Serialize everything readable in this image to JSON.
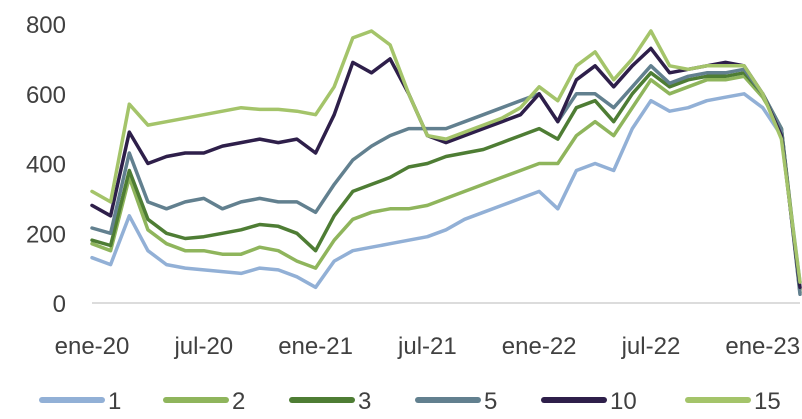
{
  "chart_data": {
    "type": "line",
    "title": "",
    "xlabel": "",
    "ylabel": "",
    "ylim": [
      0,
      800
    ],
    "yticks": [
      0,
      200,
      400,
      600,
      800
    ],
    "xticks": [
      "ene-20",
      "jul-20",
      "ene-21",
      "jul-21",
      "ene-22",
      "jul-22",
      "ene-23"
    ],
    "grid": false,
    "legend": "bottom",
    "x": [
      "ene-20",
      "feb-20",
      "mar-20",
      "abr-20",
      "may-20",
      "jun-20",
      "jul-20",
      "ago-20",
      "sep-20",
      "oct-20",
      "nov-20",
      "dic-20",
      "ene-21",
      "feb-21",
      "mar-21",
      "abr-21",
      "may-21",
      "jun-21",
      "jul-21",
      "ago-21",
      "sep-21",
      "oct-21",
      "nov-21",
      "dic-21",
      "ene-22",
      "feb-22",
      "mar-22",
      "abr-22",
      "may-22",
      "jun-22",
      "jul-22",
      "ago-22",
      "sep-22",
      "oct-22",
      "nov-22",
      "dic-22",
      "ene-23",
      "feb-23",
      "mar-23"
    ],
    "series": [
      {
        "name": "1",
        "color": "#92b0d6",
        "values": [
          130,
          110,
          250,
          150,
          110,
          100,
          95,
          90,
          85,
          100,
          95,
          75,
          45,
          120,
          150,
          160,
          170,
          180,
          190,
          210,
          240,
          260,
          280,
          300,
          320,
          270,
          380,
          400,
          380,
          500,
          580,
          550,
          560,
          580,
          590,
          600,
          560,
          480,
          60
        ]
      },
      {
        "name": "2",
        "color": "#8fb55c",
        "values": [
          170,
          150,
          360,
          210,
          170,
          150,
          150,
          140,
          140,
          160,
          150,
          120,
          100,
          180,
          240,
          260,
          270,
          270,
          280,
          300,
          320,
          340,
          360,
          380,
          400,
          400,
          480,
          520,
          480,
          560,
          640,
          600,
          620,
          640,
          640,
          650,
          590,
          500,
          40
        ]
      },
      {
        "name": "3",
        "color": "#4e7d34",
        "values": [
          180,
          165,
          380,
          240,
          200,
          185,
          190,
          200,
          210,
          225,
          220,
          200,
          150,
          250,
          320,
          340,
          360,
          390,
          400,
          420,
          430,
          440,
          460,
          480,
          500,
          470,
          560,
          580,
          520,
          600,
          660,
          620,
          640,
          650,
          650,
          660,
          600,
          500,
          30
        ]
      },
      {
        "name": "5",
        "color": "#62808f",
        "values": [
          215,
          200,
          430,
          290,
          270,
          290,
          300,
          270,
          290,
          300,
          290,
          290,
          260,
          340,
          410,
          450,
          480,
          500,
          500,
          500,
          520,
          540,
          560,
          580,
          600,
          520,
          600,
          600,
          560,
          620,
          680,
          630,
          650,
          660,
          660,
          670,
          600,
          500,
          25
        ]
      },
      {
        "name": "10",
        "color": "#2e1f4a",
        "values": [
          280,
          250,
          490,
          400,
          420,
          430,
          430,
          450,
          460,
          470,
          460,
          470,
          430,
          540,
          690,
          660,
          700,
          600,
          480,
          460,
          480,
          500,
          520,
          540,
          600,
          520,
          640,
          680,
          620,
          680,
          730,
          660,
          670,
          680,
          690,
          680,
          600,
          480,
          45
        ]
      },
      {
        "name": "15",
        "color": "#a4c46a",
        "values": [
          320,
          290,
          570,
          510,
          520,
          530,
          540,
          550,
          560,
          555,
          555,
          550,
          540,
          620,
          760,
          780,
          740,
          600,
          480,
          470,
          490,
          510,
          530,
          560,
          620,
          580,
          680,
          720,
          640,
          700,
          780,
          680,
          670,
          680,
          680,
          680,
          600,
          470,
          60
        ]
      }
    ]
  }
}
